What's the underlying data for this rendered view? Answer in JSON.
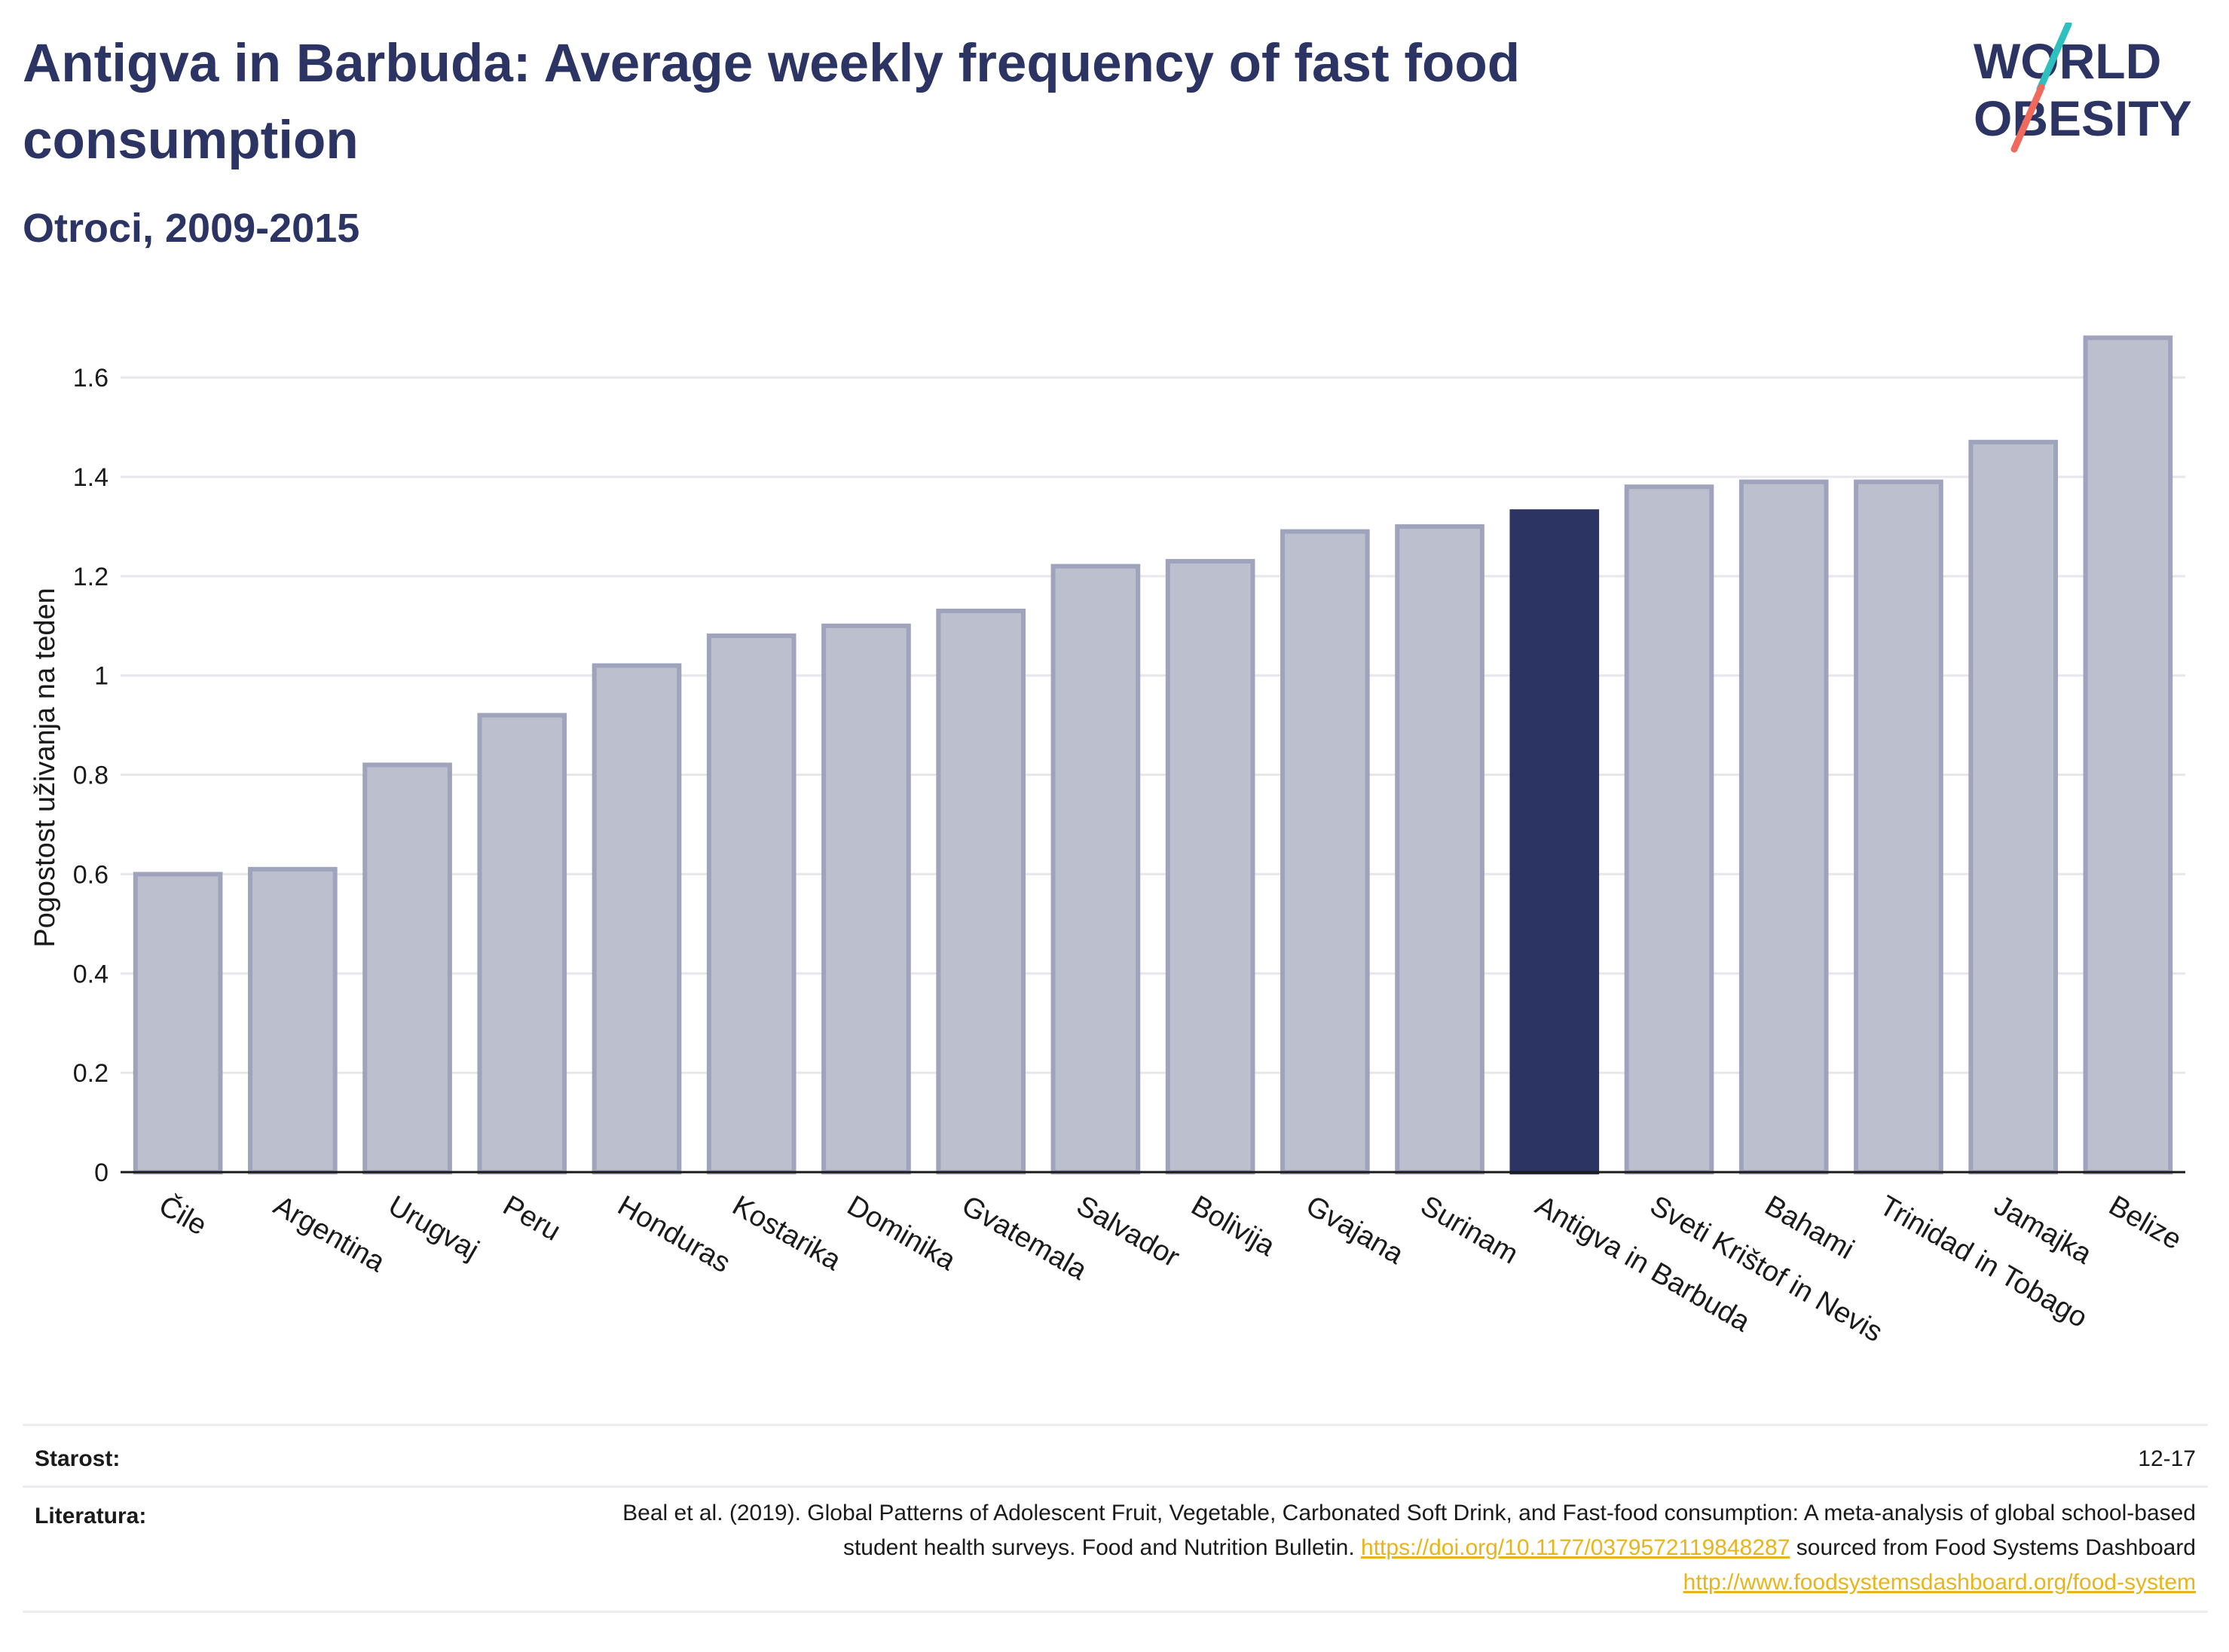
{
  "header": {
    "title": "Antigva in Barbuda: Average weekly frequency of fast food consumption",
    "subtitle": "Otroci, 2009-2015"
  },
  "logo": {
    "line1": "WORLD",
    "line2": "OBESITY",
    "text_color": "#2b3463",
    "slash_colors": [
      "#2ebfbf",
      "#ef6a5c"
    ]
  },
  "colors": {
    "bar": "#bcbfcd",
    "bar_edge": "#9fa3bb",
    "highlight": "#2b3463",
    "gridline": "#e6e6eb",
    "axis": "#1a1a1a",
    "link": "#e7b51a"
  },
  "chart_data": {
    "type": "bar",
    "categories": [
      "Čile",
      "Argentina",
      "Urugvaj",
      "Peru",
      "Honduras",
      "Kostarika",
      "Dominika",
      "Gvatemala",
      "Salvador",
      "Bolivija",
      "Gvajana",
      "Surinam",
      "Antigva in Barbuda",
      "Sveti Krištof in Nevis",
      "Bahami",
      "Trinidad in Tobago",
      "Jamajka",
      "Belize"
    ],
    "values": [
      0.6,
      0.61,
      0.82,
      0.92,
      1.02,
      1.08,
      1.1,
      1.13,
      1.22,
      1.23,
      1.29,
      1.3,
      1.33,
      1.38,
      1.39,
      1.39,
      1.47,
      1.68
    ],
    "highlight_index": 12,
    "ylabel": "Pogostost uživanja na teden",
    "xlabel": "",
    "ylim": [
      0,
      1.72
    ],
    "yticks": [
      0,
      0.2,
      0.4,
      0.6,
      0.8,
      1,
      1.2,
      1.4,
      1.6
    ],
    "ytick_labels": [
      "0",
      "0.2",
      "0.4",
      "0.6",
      "0.8",
      "1",
      "1.2",
      "1.4",
      "1.6"
    ],
    "grid": true
  },
  "footer": {
    "age_label": "Starost:",
    "age_value": "12-17",
    "ref_label": "Literatura:",
    "ref_text_1": "Beal et al. (2019). Global Patterns of Adolescent Fruit, Vegetable, Carbonated Soft Drink, and Fast-food consumption: A meta-analysis of global school-based student health surveys. Food and Nutrition Bulletin.",
    "ref_link_1": "https://doi.org/10.1177/0379572119848287",
    "ref_text_2": "sourced from Food Systems Dashboard",
    "ref_link_2": "http://www.foodsystemsdashboard.org/food-system"
  }
}
